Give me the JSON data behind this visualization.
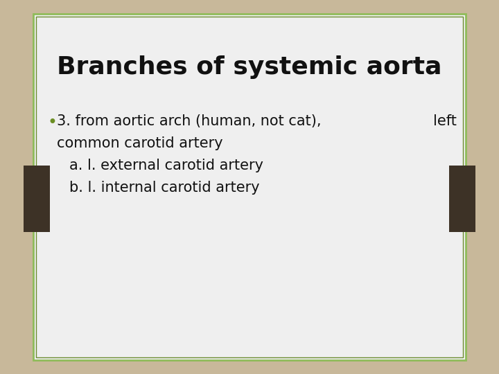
{
  "title": "Branches of systemic aorta",
  "title_fontsize": 26,
  "title_color": "#111111",
  "bullet_text_line1": "3. from aortic arch (human, not cat),",
  "bullet_text_right": "left",
  "bullet_text_line2": "common carotid artery",
  "bullet_text_line3": "a. l. external carotid artery",
  "bullet_text_line4": "b. l. internal carotid artery",
  "bullet_color": "#6b8e23",
  "text_color": "#111111",
  "text_fontsize": 15,
  "background_color": "#c8b89a",
  "slide_bg": "#efefef",
  "slide_border_color_outer": "#8fbc5a",
  "slide_border_color_inner": "#6b8c30",
  "dark_bar_color": "#3d3226"
}
